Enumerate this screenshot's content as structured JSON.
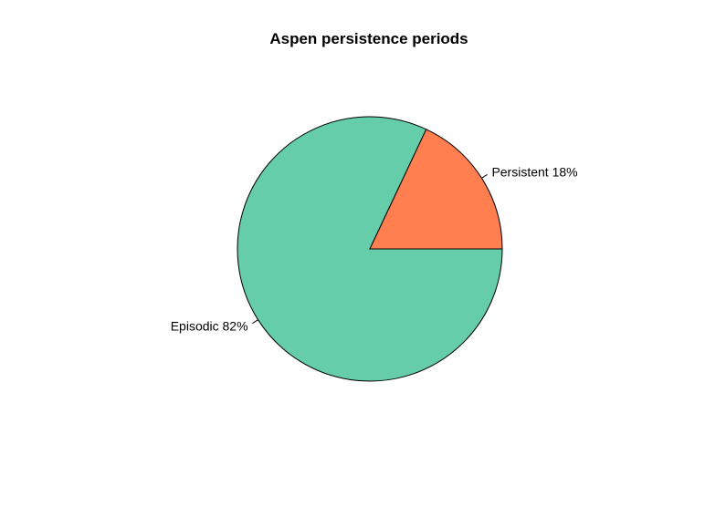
{
  "chart_data": {
    "type": "pie",
    "title": "Aspen persistence periods",
    "slices": [
      {
        "label": "Episodic 82%",
        "value": 82,
        "color": "#66CDAA"
      },
      {
        "label": "Persistent 18%",
        "value": 18,
        "color": "#FF7F50"
      }
    ],
    "start_angle_deg": 0,
    "direction": "clockwise"
  }
}
